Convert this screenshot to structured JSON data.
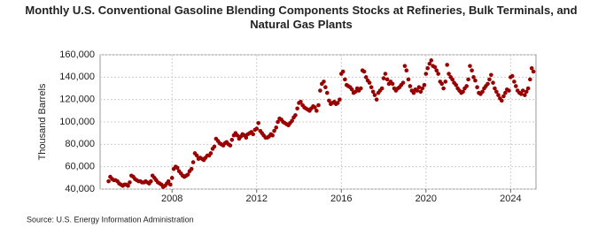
{
  "chart_data": {
    "type": "scatter",
    "title": "Monthly U.S. Conventional Gasoline Blending Components Stocks at Refineries, Bulk Terminals, and Natural Gas Plants",
    "y_label": "Thousand Barrels",
    "source": "Source: U.S. Energy Information Administration",
    "color": "#990000",
    "grid": true,
    "xlim": [
      2004.6,
      2025.2
    ],
    "xticks": [
      2008,
      2012,
      2016,
      2020,
      2024
    ],
    "ylim": [
      40000,
      160000
    ],
    "yticks": [
      {
        "value": 40000,
        "label": "40,000"
      },
      {
        "value": 60000,
        "label": "60,000"
      },
      {
        "value": 80000,
        "label": "80,000"
      },
      {
        "value": 100000,
        "label": "100,000"
      },
      {
        "value": 120000,
        "label": "120,000"
      },
      {
        "value": 140000,
        "label": "140,000"
      },
      {
        "value": 160000,
        "label": "160,000"
      }
    ],
    "x": [
      2005,
      2005.08,
      2005.17,
      2005.25,
      2005.33,
      2005.42,
      2005.5,
      2005.58,
      2005.67,
      2005.75,
      2005.83,
      2005.92,
      2006,
      2006.08,
      2006.17,
      2006.25,
      2006.33,
      2006.42,
      2006.5,
      2006.58,
      2006.67,
      2006.75,
      2006.83,
      2006.92,
      2007,
      2007.08,
      2007.17,
      2007.25,
      2007.33,
      2007.42,
      2007.5,
      2007.58,
      2007.67,
      2007.75,
      2007.83,
      2007.92,
      2008,
      2008.08,
      2008.17,
      2008.25,
      2008.33,
      2008.42,
      2008.5,
      2008.58,
      2008.67,
      2008.75,
      2008.83,
      2008.92,
      2009,
      2009.08,
      2009.17,
      2009.25,
      2009.33,
      2009.42,
      2009.5,
      2009.58,
      2009.67,
      2009.75,
      2009.83,
      2009.92,
      2010,
      2010.08,
      2010.17,
      2010.25,
      2010.33,
      2010.42,
      2010.5,
      2010.58,
      2010.67,
      2010.75,
      2010.83,
      2010.92,
      2011,
      2011.08,
      2011.17,
      2011.25,
      2011.33,
      2011.42,
      2011.5,
      2011.58,
      2011.67,
      2011.75,
      2011.83,
      2011.92,
      2012,
      2012.08,
      2012.17,
      2012.25,
      2012.33,
      2012.42,
      2012.5,
      2012.58,
      2012.67,
      2012.75,
      2012.83,
      2012.92,
      2013,
      2013.08,
      2013.17,
      2013.25,
      2013.33,
      2013.42,
      2013.5,
      2013.58,
      2013.67,
      2013.75,
      2013.83,
      2013.92,
      2014,
      2014.08,
      2014.17,
      2014.25,
      2014.33,
      2014.42,
      2014.5,
      2014.58,
      2014.67,
      2014.75,
      2014.83,
      2014.92,
      2015,
      2015.08,
      2015.17,
      2015.25,
      2015.33,
      2015.42,
      2015.5,
      2015.58,
      2015.67,
      2015.75,
      2015.83,
      2015.92,
      2016,
      2016.08,
      2016.17,
      2016.25,
      2016.33,
      2016.42,
      2016.5,
      2016.58,
      2016.67,
      2016.75,
      2016.83,
      2016.92,
      2017,
      2017.08,
      2017.17,
      2017.25,
      2017.33,
      2017.42,
      2017.5,
      2017.58,
      2017.67,
      2017.75,
      2017.83,
      2017.92,
      2018,
      2018.08,
      2018.17,
      2018.25,
      2018.33,
      2018.42,
      2018.5,
      2018.58,
      2018.67,
      2018.75,
      2018.83,
      2018.92,
      2019,
      2019.08,
      2019.17,
      2019.25,
      2019.33,
      2019.42,
      2019.5,
      2019.58,
      2019.67,
      2019.75,
      2019.83,
      2019.92,
      2020,
      2020.08,
      2020.17,
      2020.25,
      2020.33,
      2020.42,
      2020.5,
      2020.58,
      2020.67,
      2020.75,
      2020.83,
      2020.92,
      2021,
      2021.08,
      2021.17,
      2021.25,
      2021.33,
      2021.42,
      2021.5,
      2021.58,
      2021.67,
      2021.75,
      2021.83,
      2021.92,
      2022,
      2022.08,
      2022.17,
      2022.25,
      2022.33,
      2022.42,
      2022.5,
      2022.58,
      2022.67,
      2022.75,
      2022.83,
      2022.92,
      2023,
      2023.08,
      2023.17,
      2023.25,
      2023.33,
      2023.42,
      2023.5,
      2023.58,
      2023.67,
      2023.75,
      2023.83,
      2023.92,
      2024,
      2024.08,
      2024.17,
      2024.25,
      2024.33,
      2024.42,
      2024.5,
      2024.58,
      2024.67,
      2024.75,
      2024.83,
      2024.92,
      2025,
      2025.08
    ],
    "values": [
      47000,
      51000,
      49000,
      48000,
      48000,
      47000,
      45000,
      44000,
      43000,
      44000,
      44000,
      43000,
      46000,
      52000,
      51000,
      49000,
      48000,
      47000,
      47000,
      46000,
      46000,
      47000,
      46000,
      45000,
      47000,
      52000,
      50000,
      48000,
      46000,
      45000,
      44000,
      42000,
      43000,
      45000,
      47000,
      44000,
      50000,
      58000,
      60000,
      59000,
      56000,
      54000,
      52000,
      51000,
      52000,
      53000,
      56000,
      58000,
      64000,
      72000,
      70000,
      67000,
      68000,
      67000,
      66000,
      68000,
      70000,
      70000,
      72000,
      76000,
      78000,
      85000,
      83000,
      81000,
      80000,
      79000,
      81000,
      82000,
      80000,
      79000,
      84000,
      88000,
      90000,
      88000,
      85000,
      87000,
      89000,
      88000,
      86000,
      89000,
      90000,
      91000,
      89000,
      93000,
      94000,
      99000,
      92000,
      90000,
      88000,
      86000,
      86000,
      87000,
      89000,
      88000,
      92000,
      95000,
      100000,
      103000,
      102000,
      100000,
      99000,
      98000,
      97000,
      99000,
      101000,
      104000,
      106000,
      112000,
      117000,
      118000,
      115000,
      113000,
      112000,
      111000,
      110000,
      112000,
      114000,
      113000,
      110000,
      115000,
      128000,
      134000,
      136000,
      131000,
      126000,
      119000,
      116000,
      117000,
      118000,
      116000,
      117000,
      120000,
      143000,
      145000,
      138000,
      133000,
      132000,
      131000,
      129000,
      126000,
      127000,
      130000,
      128000,
      130000,
      146000,
      145000,
      140000,
      137000,
      135000,
      131000,
      127000,
      124000,
      120000,
      126000,
      128000,
      130000,
      139000,
      143000,
      138000,
      134000,
      136000,
      134000,
      130000,
      128000,
      130000,
      131000,
      133000,
      135000,
      150000,
      146000,
      138000,
      132000,
      128000,
      126000,
      129000,
      128000,
      131000,
      127000,
      130000,
      133000,
      143000,
      148000,
      152000,
      155000,
      150000,
      149000,
      146000,
      143000,
      136000,
      134000,
      130000,
      136000,
      151000,
      143000,
      140000,
      138000,
      135000,
      133000,
      130000,
      128000,
      126000,
      127000,
      130000,
      132000,
      138000,
      150000,
      146000,
      140000,
      137000,
      131000,
      126000,
      125000,
      127000,
      130000,
      132000,
      134000,
      138000,
      142000,
      135000,
      130000,
      127000,
      124000,
      121000,
      119000,
      123000,
      126000,
      129000,
      128000,
      140000,
      141000,
      136000,
      132000,
      128000,
      126000,
      125000,
      128000,
      124000,
      127000,
      130000,
      138000,
      148000,
      145000
    ]
  }
}
